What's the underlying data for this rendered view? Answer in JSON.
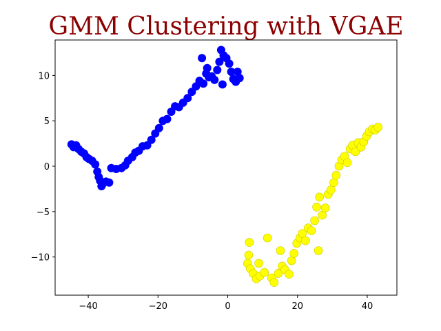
{
  "chart_data": {
    "type": "scatter",
    "title": "GMM Clustering with VGAE",
    "title_color": "#8b0000",
    "xlabel": "",
    "ylabel": "",
    "xlim": [
      -49.5,
      48.5
    ],
    "ylim": [
      -14.2,
      13.9
    ],
    "grid": false,
    "x_ticks": [
      -40,
      -20,
      0,
      20,
      40
    ],
    "y_ticks": [
      -10,
      -5,
      0,
      5,
      10
    ],
    "series": [
      {
        "color": "#0000ff",
        "points": [
          [
            -44.8,
            2.4
          ],
          [
            -44.2,
            2.1
          ],
          [
            -43.5,
            2.3
          ],
          [
            -42.8,
            1.9
          ],
          [
            -42.0,
            1.6
          ],
          [
            -41.2,
            1.4
          ],
          [
            -40.5,
            1.0
          ],
          [
            -39.8,
            0.8
          ],
          [
            -38.9,
            0.6
          ],
          [
            -38.0,
            0.2
          ],
          [
            -37.4,
            -0.6
          ],
          [
            -37.0,
            -1.2
          ],
          [
            -36.6,
            -1.6
          ],
          [
            -36.2,
            -2.2
          ],
          [
            -35.7,
            -1.9
          ],
          [
            -34.9,
            -1.7
          ],
          [
            -34.0,
            -1.8
          ],
          [
            -33.4,
            -0.2
          ],
          [
            -32.0,
            -0.3
          ],
          [
            -30.5,
            -0.2
          ],
          [
            -29.4,
            0.1
          ],
          [
            -28.6,
            0.6
          ],
          [
            -27.4,
            1.0
          ],
          [
            -26.5,
            1.5
          ],
          [
            -25.5,
            1.7
          ],
          [
            -24.4,
            2.2
          ],
          [
            -23.1,
            2.3
          ],
          [
            -21.9,
            2.9
          ],
          [
            -20.8,
            3.6
          ],
          [
            -19.7,
            4.2
          ],
          [
            -18.6,
            5.0
          ],
          [
            -17.4,
            5.2
          ],
          [
            -16.2,
            6.0
          ],
          [
            -15.1,
            6.6
          ],
          [
            -14.0,
            6.5
          ],
          [
            -12.8,
            7.0
          ],
          [
            -11.5,
            7.5
          ],
          [
            -10.3,
            8.2
          ],
          [
            -9.1,
            8.8
          ],
          [
            -8.1,
            9.4
          ],
          [
            -7.0,
            9.1
          ],
          [
            -6.2,
            10.2
          ],
          [
            -5.4,
            9.8
          ],
          [
            -4.6,
            9.9
          ],
          [
            -3.8,
            9.5
          ],
          [
            -3.0,
            10.6
          ],
          [
            -2.4,
            11.5
          ],
          [
            -1.9,
            12.8
          ],
          [
            -1.2,
            12.2
          ],
          [
            -0.4,
            11.9
          ],
          [
            0.4,
            11.3
          ],
          [
            1.0,
            10.4
          ],
          [
            1.6,
            9.6
          ],
          [
            2.3,
            9.3
          ],
          [
            2.8,
            10.4
          ],
          [
            3.4,
            9.7
          ],
          [
            -7.4,
            11.9
          ],
          [
            -5.9,
            10.8
          ],
          [
            -1.5,
            9.0
          ]
        ]
      },
      {
        "color": "#ffff00",
        "points": [
          [
            6.2,
            -8.4
          ],
          [
            6.0,
            -9.8
          ],
          [
            5.7,
            -10.7
          ],
          [
            6.5,
            -11.3
          ],
          [
            7.3,
            -11.8
          ],
          [
            8.2,
            -12.4
          ],
          [
            9.2,
            -12.1
          ],
          [
            10.5,
            -11.7
          ],
          [
            11.4,
            -7.9
          ],
          [
            12.6,
            -12.3
          ],
          [
            13.3,
            -12.8
          ],
          [
            14.5,
            -11.8
          ],
          [
            15.6,
            -11.0
          ],
          [
            16.4,
            -11.4
          ],
          [
            17.6,
            -11.9
          ],
          [
            18.3,
            -10.4
          ],
          [
            19.0,
            -9.6
          ],
          [
            19.8,
            -8.5
          ],
          [
            20.7,
            -7.9
          ],
          [
            21.4,
            -7.4
          ],
          [
            22.3,
            -8.2
          ],
          [
            23.1,
            -6.8
          ],
          [
            24.0,
            -7.1
          ],
          [
            24.9,
            -6.0
          ],
          [
            25.5,
            -4.5
          ],
          [
            26.3,
            -3.4
          ],
          [
            27.1,
            -5.4
          ],
          [
            28.0,
            -4.6
          ],
          [
            28.8,
            -3.1
          ],
          [
            29.6,
            -2.6
          ],
          [
            30.4,
            -1.8
          ],
          [
            31.1,
            -1.0
          ],
          [
            31.9,
            0.0
          ],
          [
            32.7,
            0.7
          ],
          [
            33.5,
            1.1
          ],
          [
            34.3,
            0.4
          ],
          [
            35.1,
            1.9
          ],
          [
            35.8,
            2.3
          ],
          [
            36.6,
            1.6
          ],
          [
            37.4,
            2.6
          ],
          [
            38.2,
            2.1
          ],
          [
            39.0,
            2.7
          ],
          [
            39.8,
            3.3
          ],
          [
            40.6,
            3.8
          ],
          [
            41.5,
            4.1
          ],
          [
            42.3,
            4.0
          ],
          [
            43.1,
            4.3
          ],
          [
            26.0,
            -9.3
          ],
          [
            8.9,
            -10.7
          ],
          [
            15.1,
            -9.3
          ]
        ]
      }
    ]
  }
}
